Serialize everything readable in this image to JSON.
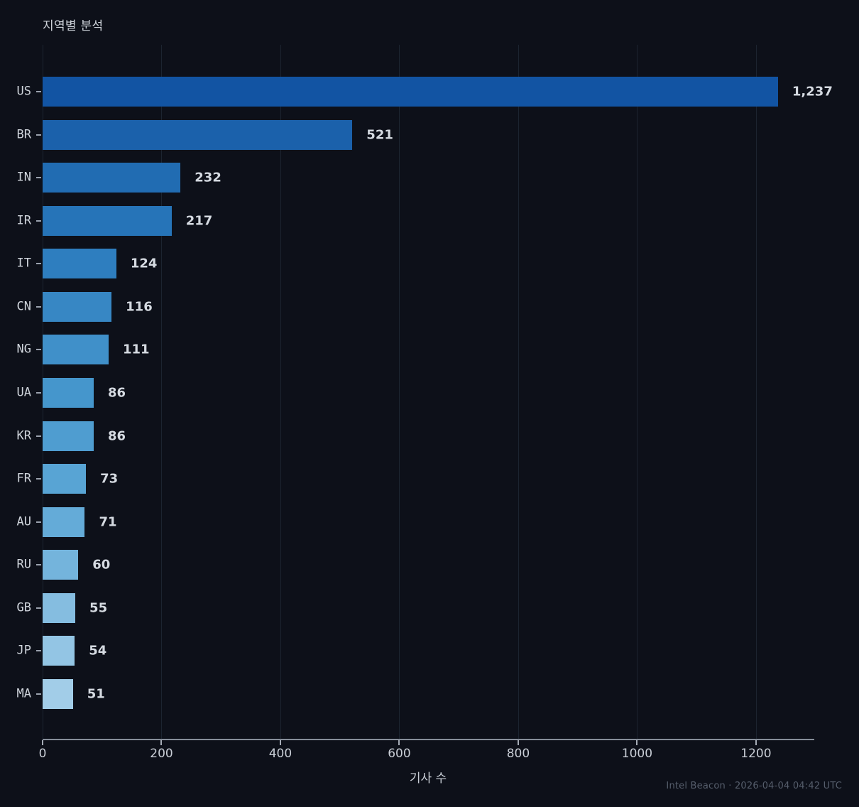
{
  "title": "지역별 분석",
  "footer": "Intel Beacon · 2026-04-04 04:42 UTC",
  "colors": {
    "background": "#0d1019",
    "gridline": "#1c2430",
    "axis_line": "#868d99",
    "tick_mark": "#a6acb6",
    "text_primary": "#ced3da",
    "text_value": "#d5dae1",
    "text_footer": "#565e6c"
  },
  "chart_data": {
    "type": "bar",
    "orientation": "horizontal",
    "title": "지역별 분석",
    "xlabel": "기사 수",
    "ylabel": "",
    "categories": [
      "US",
      "BR",
      "IN",
      "IR",
      "IT",
      "CN",
      "NG",
      "UA",
      "KR",
      "FR",
      "AU",
      "RU",
      "GB",
      "JP",
      "MA"
    ],
    "values": [
      1237,
      521,
      232,
      217,
      124,
      116,
      111,
      86,
      86,
      73,
      71,
      60,
      55,
      54,
      51
    ],
    "value_labels": [
      "1,237",
      "521",
      "232",
      "217",
      "124",
      "116",
      "111",
      "86",
      "86",
      "73",
      "71",
      "60",
      "55",
      "54",
      "51"
    ],
    "bar_colors": [
      "#1254a3",
      "#1b61ab",
      "#216cb2",
      "#2674b8",
      "#2e7ebf",
      "#3787c4",
      "#4090c9",
      "#4596cc",
      "#4f9dd0",
      "#58a4d4",
      "#64abd8",
      "#74b4dc",
      "#85bde0",
      "#93c5e4",
      "#a2cde8"
    ],
    "xlim": [
      0,
      1298
    ],
    "xticks": [
      0,
      200,
      400,
      600,
      800,
      1000,
      1200
    ],
    "xtick_labels": [
      "0",
      "200",
      "400",
      "600",
      "800",
      "1000",
      "1200"
    ],
    "grid": true,
    "legend": "none"
  }
}
